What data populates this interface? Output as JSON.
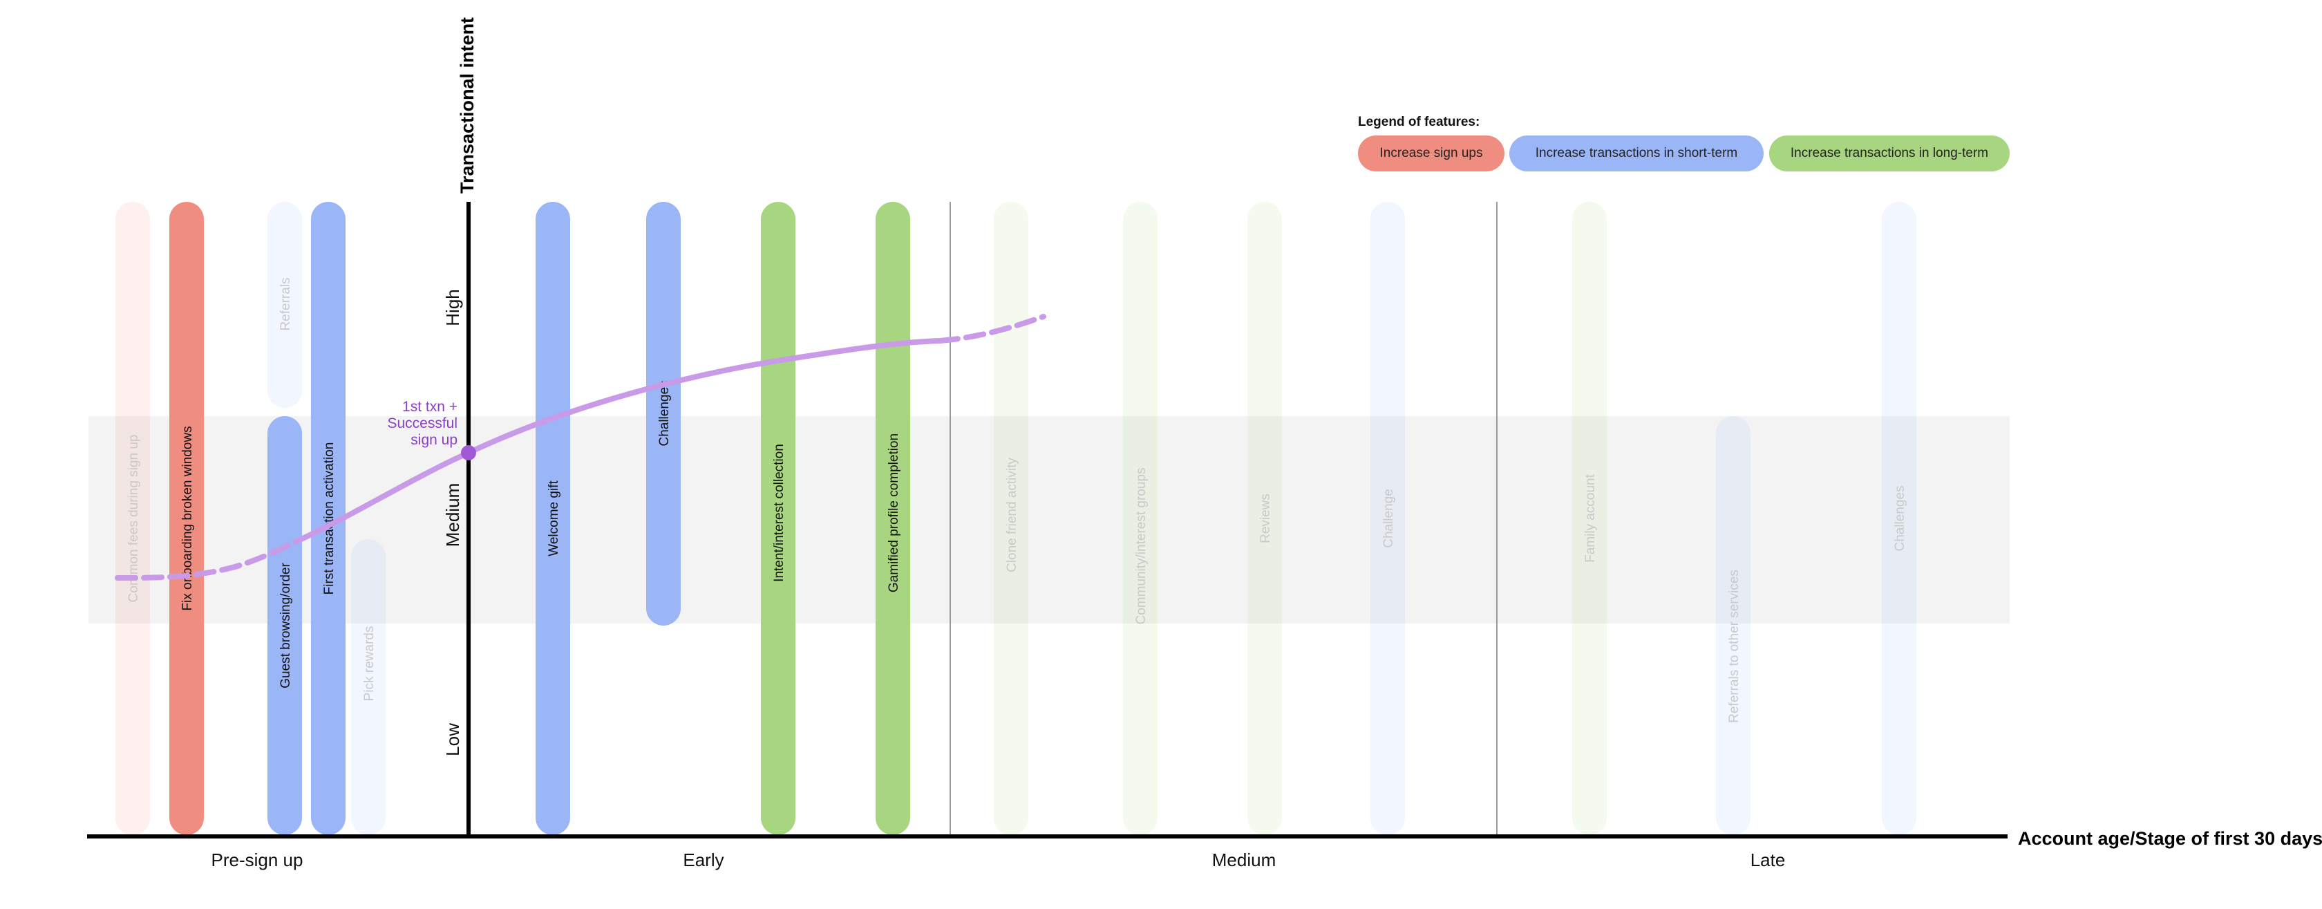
{
  "legend": {
    "title": "Legend of features:",
    "items": [
      {
        "label": "Increase sign ups",
        "color": "#ef8e80"
      },
      {
        "label": "Increase transactions in short-term",
        "color": "#9bb6f6"
      },
      {
        "label": "Increase transactions in long-term",
        "color": "#a8d57f"
      }
    ]
  },
  "colors": {
    "red": "#ef8e80",
    "blue": "#9bb6f6",
    "green": "#a8d57f",
    "curve": "#c99ae8",
    "curve_point": "#a05ad6",
    "band": "#f3f3f3"
  },
  "axes": {
    "y_title": "Transactional intent",
    "y_levels": [
      "High",
      "Medium",
      "Low"
    ],
    "x_title": "Account age/Stage of first 30 days",
    "stages": [
      "Pre-sign up",
      "Early",
      "Medium",
      "Late"
    ]
  },
  "annotation": {
    "lines": [
      "1st txn +",
      "Successful",
      "sign up"
    ]
  },
  "features": [
    {
      "label": "Common fees during sign up",
      "color": "red",
      "faded": true
    },
    {
      "label": "Fix onboarding broken windows",
      "color": "red",
      "faded": false
    },
    {
      "label": "Referrals",
      "color": "blue",
      "faded": true
    },
    {
      "label": "Guest browsing/order",
      "color": "blue",
      "faded": false
    },
    {
      "label": "First transaction activation",
      "color": "blue",
      "faded": false
    },
    {
      "label": "Pick rewards",
      "color": "blue",
      "faded": true
    },
    {
      "label": "Welcome gift",
      "color": "blue",
      "faded": false
    },
    {
      "label": "Challenges",
      "color": "blue",
      "faded": false
    },
    {
      "label": "Intent/interest collection",
      "color": "green",
      "faded": false
    },
    {
      "label": "Gamified profile completion",
      "color": "green",
      "faded": false
    },
    {
      "label": "Clone friend activity",
      "color": "green",
      "faded": true
    },
    {
      "label": "Community/interest groups",
      "color": "green",
      "faded": true
    },
    {
      "label": "Reviews",
      "color": "green",
      "faded": true
    },
    {
      "label": "Challenge",
      "color": "blue",
      "faded": true
    },
    {
      "label": "Family account",
      "color": "green",
      "faded": true
    },
    {
      "label": "Referrals to other services",
      "color": "blue",
      "faded": true
    },
    {
      "label": "Challenges",
      "color": "blue",
      "faded": true
    }
  ]
}
